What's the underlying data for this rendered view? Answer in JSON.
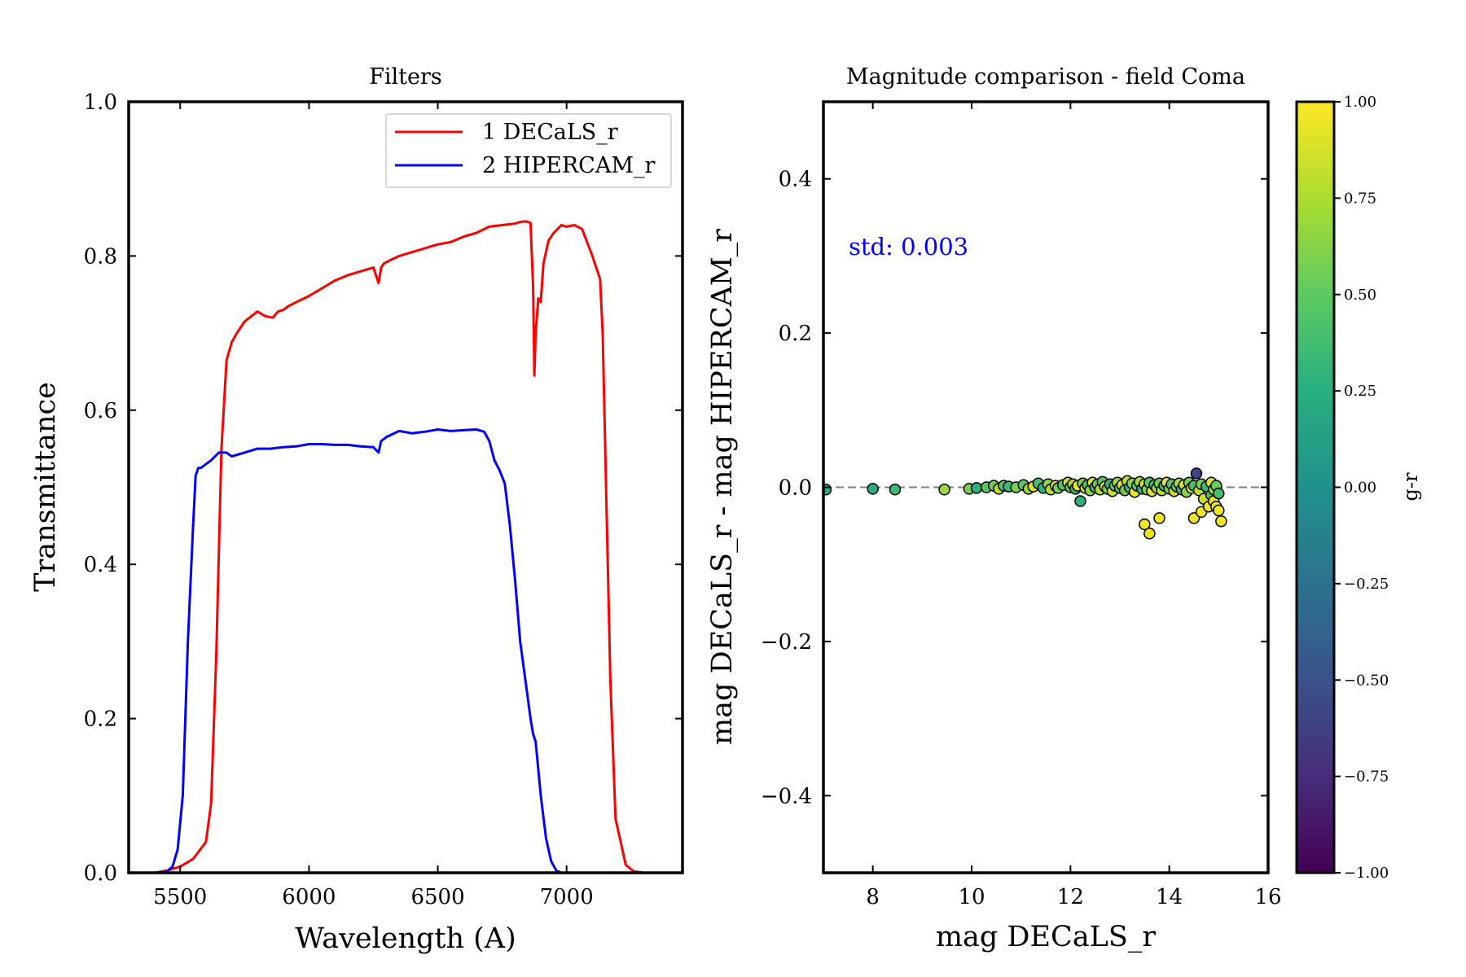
{
  "chart_data": [
    {
      "type": "line",
      "title": "Filters",
      "xlabel": "Wavelength (A)",
      "ylabel": "Transmittance",
      "xlim": [
        5300,
        7450
      ],
      "ylim": [
        0.0,
        1.0
      ],
      "xticks": [
        5500,
        6000,
        6500,
        7000
      ],
      "yticks": [
        0.0,
        0.2,
        0.4,
        0.6,
        0.8,
        1.0
      ],
      "xtick_labels": [
        "5500",
        "6000",
        "6500",
        "7000"
      ],
      "ytick_labels": [
        "0.0",
        "0.2",
        "0.4",
        "0.6",
        "0.8",
        "1.0"
      ],
      "legend": {
        "position": "upper right",
        "entries": [
          "1 DECaLS_r",
          "2 HIPERCAM_r"
        ]
      },
      "series": [
        {
          "name": "1 DECaLS_r",
          "color": "#ff0000",
          "x": [
            5400,
            5450,
            5500,
            5550,
            5600,
            5620,
            5640,
            5660,
            5680,
            5700,
            5720,
            5750,
            5800,
            5830,
            5860,
            5880,
            5900,
            5920,
            5950,
            6000,
            6050,
            6100,
            6150,
            6200,
            6250,
            6270,
            6280,
            6290,
            6300,
            6350,
            6400,
            6450,
            6500,
            6550,
            6600,
            6650,
            6700,
            6750,
            6800,
            6820,
            6840,
            6860,
            6870,
            6875,
            6880,
            6890,
            6900,
            6910,
            6930,
            6950,
            6980,
            7000,
            7030,
            7060,
            7100,
            7130,
            7140,
            7150,
            7170,
            7190,
            7210,
            7230,
            7260,
            7300
          ],
          "y": [
            0.0,
            0.003,
            0.008,
            0.018,
            0.04,
            0.09,
            0.28,
            0.55,
            0.665,
            0.688,
            0.7,
            0.715,
            0.728,
            0.722,
            0.72,
            0.728,
            0.73,
            0.735,
            0.74,
            0.748,
            0.758,
            0.768,
            0.775,
            0.78,
            0.785,
            0.765,
            0.785,
            0.79,
            0.792,
            0.8,
            0.805,
            0.81,
            0.815,
            0.818,
            0.825,
            0.83,
            0.838,
            0.84,
            0.842,
            0.844,
            0.845,
            0.843,
            0.76,
            0.645,
            0.7,
            0.745,
            0.74,
            0.79,
            0.82,
            0.83,
            0.84,
            0.838,
            0.84,
            0.835,
            0.8,
            0.77,
            0.7,
            0.55,
            0.25,
            0.07,
            0.04,
            0.01,
            0.002,
            0.0
          ]
        },
        {
          "name": "2 HIPERCAM_r",
          "color": "#0000ff",
          "x": [
            5420,
            5450,
            5470,
            5490,
            5510,
            5530,
            5550,
            5560,
            5570,
            5580,
            5600,
            5620,
            5650,
            5680,
            5700,
            5750,
            5800,
            5850,
            5900,
            5950,
            6000,
            6050,
            6100,
            6150,
            6200,
            6250,
            6270,
            6280,
            6300,
            6350,
            6400,
            6450,
            6500,
            6550,
            6600,
            6650,
            6680,
            6700,
            6720,
            6740,
            6760,
            6780,
            6800,
            6820,
            6840,
            6860,
            6870,
            6880,
            6900,
            6920,
            6940,
            6960,
            6980
          ],
          "y": [
            0.0,
            0.002,
            0.008,
            0.03,
            0.1,
            0.3,
            0.45,
            0.515,
            0.525,
            0.525,
            0.53,
            0.535,
            0.545,
            0.545,
            0.54,
            0.545,
            0.55,
            0.55,
            0.552,
            0.553,
            0.556,
            0.556,
            0.555,
            0.555,
            0.553,
            0.552,
            0.545,
            0.56,
            0.565,
            0.573,
            0.57,
            0.572,
            0.575,
            0.573,
            0.574,
            0.575,
            0.572,
            0.56,
            0.535,
            0.522,
            0.505,
            0.45,
            0.38,
            0.3,
            0.25,
            0.2,
            0.18,
            0.17,
            0.1,
            0.045,
            0.015,
            0.003,
            0.0
          ]
        }
      ]
    },
    {
      "type": "scatter",
      "title": "Magnitude comparison - field Coma",
      "xlabel": "mag DECaLS_r",
      "ylabel": "mag DECaLS_r - mag HIPERCAM_r",
      "xlim": [
        7,
        16
      ],
      "ylim": [
        -0.5,
        0.5
      ],
      "xticks": [
        8,
        10,
        12,
        14,
        16
      ],
      "yticks": [
        -0.4,
        -0.2,
        0.0,
        0.2,
        0.4
      ],
      "xtick_labels": [
        "8",
        "10",
        "12",
        "14",
        "16"
      ],
      "ytick_labels": [
        "−0.4",
        "−0.2",
        "0.0",
        "0.2",
        "0.4"
      ],
      "reference_line": {
        "y": 0.0,
        "style": "dashed",
        "color": "#808080"
      },
      "annotation": "std: 0.003",
      "colorbar": {
        "label": "g-r",
        "range": [
          -1.0,
          1.0
        ],
        "colormap": "viridis",
        "ticks": [
          -1.0,
          -0.75,
          -0.5,
          -0.25,
          0.0,
          0.25,
          0.5,
          0.75,
          1.0
        ],
        "tick_labels": [
          "−1.00",
          "−0.75",
          "−0.50",
          "−0.25",
          "0.00",
          "0.25",
          "0.50",
          "0.75",
          "1.00"
        ]
      },
      "points": [
        {
          "x": 7.05,
          "y": -0.003,
          "c": 0.25
        },
        {
          "x": 8.0,
          "y": -0.002,
          "c": 0.25
        },
        {
          "x": 8.45,
          "y": -0.003,
          "c": 0.35
        },
        {
          "x": 9.45,
          "y": -0.003,
          "c": 0.7
        },
        {
          "x": 9.95,
          "y": -0.002,
          "c": 0.6
        },
        {
          "x": 10.1,
          "y": -0.001,
          "c": 0.3
        },
        {
          "x": 10.3,
          "y": 0.0,
          "c": 0.5
        },
        {
          "x": 10.45,
          "y": 0.002,
          "c": 0.55
        },
        {
          "x": 10.55,
          "y": -0.002,
          "c": 0.8
        },
        {
          "x": 10.65,
          "y": 0.002,
          "c": 0.45
        },
        {
          "x": 10.75,
          "y": 0.001,
          "c": 0.35
        },
        {
          "x": 10.9,
          "y": 0.0,
          "c": 0.6
        },
        {
          "x": 11.05,
          "y": 0.003,
          "c": 0.5
        },
        {
          "x": 11.15,
          "y": -0.002,
          "c": 0.7
        },
        {
          "x": 11.25,
          "y": 0.001,
          "c": 0.9
        },
        {
          "x": 11.35,
          "y": 0.005,
          "c": 0.4
        },
        {
          "x": 11.45,
          "y": -0.001,
          "c": 0.3
        },
        {
          "x": 11.55,
          "y": 0.004,
          "c": 0.65
        },
        {
          "x": 11.6,
          "y": -0.003,
          "c": 0.8
        },
        {
          "x": 11.7,
          "y": 0.002,
          "c": 0.95
        },
        {
          "x": 11.75,
          "y": -0.001,
          "c": 0.55
        },
        {
          "x": 11.85,
          "y": 0.003,
          "c": 0.45
        },
        {
          "x": 11.95,
          "y": 0.006,
          "c": 0.85
        },
        {
          "x": 12.0,
          "y": 0.0,
          "c": 0.5
        },
        {
          "x": 12.05,
          "y": 0.004,
          "c": 0.75
        },
        {
          "x": 12.1,
          "y": -0.002,
          "c": 0.3
        },
        {
          "x": 12.15,
          "y": 0.002,
          "c": 0.95
        },
        {
          "x": 12.2,
          "y": -0.018,
          "c": 0.3
        },
        {
          "x": 12.25,
          "y": 0.005,
          "c": 0.6
        },
        {
          "x": 12.3,
          "y": -0.001,
          "c": 0.8
        },
        {
          "x": 12.35,
          "y": 0.003,
          "c": 0.4
        },
        {
          "x": 12.4,
          "y": -0.004,
          "c": 0.65
        },
        {
          "x": 12.45,
          "y": 0.006,
          "c": 0.9
        },
        {
          "x": 12.5,
          "y": 0.0,
          "c": 0.35
        },
        {
          "x": 12.55,
          "y": 0.004,
          "c": 0.55
        },
        {
          "x": 12.6,
          "y": -0.003,
          "c": 0.75
        },
        {
          "x": 12.65,
          "y": 0.007,
          "c": 0.45
        },
        {
          "x": 12.7,
          "y": 0.001,
          "c": 0.95
        },
        {
          "x": 12.75,
          "y": -0.002,
          "c": 0.6
        },
        {
          "x": 12.8,
          "y": 0.004,
          "c": 0.3
        },
        {
          "x": 12.85,
          "y": -0.005,
          "c": 0.85
        },
        {
          "x": 12.9,
          "y": 0.002,
          "c": 0.5
        },
        {
          "x": 12.95,
          "y": 0.006,
          "c": 0.7
        },
        {
          "x": 13.0,
          "y": -0.001,
          "c": 0.4
        },
        {
          "x": 13.05,
          "y": 0.003,
          "c": 0.9
        },
        {
          "x": 13.1,
          "y": -0.004,
          "c": 0.55
        },
        {
          "x": 13.15,
          "y": 0.008,
          "c": 0.8
        },
        {
          "x": 13.2,
          "y": 0.0,
          "c": 0.35
        },
        {
          "x": 13.25,
          "y": 0.005,
          "c": 0.65
        },
        {
          "x": 13.3,
          "y": -0.006,
          "c": 0.95
        },
        {
          "x": 13.35,
          "y": 0.002,
          "c": 0.45
        },
        {
          "x": 13.4,
          "y": 0.007,
          "c": 0.75
        },
        {
          "x": 13.45,
          "y": -0.002,
          "c": 0.3
        },
        {
          "x": 13.5,
          "y": 0.004,
          "c": 0.85
        },
        {
          "x": 13.5,
          "y": -0.048,
          "c": 0.95
        },
        {
          "x": 13.55,
          "y": -0.003,
          "c": 0.6
        },
        {
          "x": 13.6,
          "y": 0.006,
          "c": 0.5
        },
        {
          "x": 13.6,
          "y": -0.06,
          "c": 0.95
        },
        {
          "x": 13.65,
          "y": -0.005,
          "c": 0.9
        },
        {
          "x": 13.7,
          "y": 0.003,
          "c": 0.4
        },
        {
          "x": 13.75,
          "y": -0.001,
          "c": 0.7
        },
        {
          "x": 13.8,
          "y": 0.005,
          "c": 0.55
        },
        {
          "x": 13.8,
          "y": -0.04,
          "c": 0.95
        },
        {
          "x": 13.85,
          "y": -0.004,
          "c": 0.8
        },
        {
          "x": 13.9,
          "y": 0.002,
          "c": 0.35
        },
        {
          "x": 13.95,
          "y": 0.006,
          "c": 0.95
        },
        {
          "x": 14.0,
          "y": -0.002,
          "c": 0.6
        },
        {
          "x": 14.05,
          "y": 0.004,
          "c": 0.45
        },
        {
          "x": 14.1,
          "y": -0.005,
          "c": 0.85
        },
        {
          "x": 14.15,
          "y": 0.001,
          "c": 0.5
        },
        {
          "x": 14.2,
          "y": 0.005,
          "c": 0.75
        },
        {
          "x": 14.25,
          "y": -0.003,
          "c": 0.3
        },
        {
          "x": 14.3,
          "y": 0.003,
          "c": 0.9
        },
        {
          "x": 14.35,
          "y": -0.006,
          "c": 0.65
        },
        {
          "x": 14.4,
          "y": 0.006,
          "c": 0.55
        },
        {
          "x": 14.45,
          "y": -0.001,
          "c": 0.95
        },
        {
          "x": 14.5,
          "y": 0.002,
          "c": 0.4
        },
        {
          "x": 14.5,
          "y": -0.04,
          "c": 0.95
        },
        {
          "x": 14.55,
          "y": 0.018,
          "c": -0.6
        },
        {
          "x": 14.6,
          "y": -0.004,
          "c": 0.8
        },
        {
          "x": 14.65,
          "y": 0.004,
          "c": 0.6
        },
        {
          "x": 14.65,
          "y": -0.032,
          "c": 0.95
        },
        {
          "x": 14.7,
          "y": -0.015,
          "c": 0.85
        },
        {
          "x": 14.75,
          "y": 0.001,
          "c": 0.35
        },
        {
          "x": 14.8,
          "y": -0.025,
          "c": 0.95
        },
        {
          "x": 14.85,
          "y": 0.006,
          "c": 0.9
        },
        {
          "x": 14.85,
          "y": -0.01,
          "c": 0.45
        },
        {
          "x": 14.9,
          "y": -0.003,
          "c": 0.7
        },
        {
          "x": 14.9,
          "y": -0.018,
          "c": 0.95
        },
        {
          "x": 14.95,
          "y": 0.002,
          "c": 0.55
        },
        {
          "x": 14.95,
          "y": -0.025,
          "c": 0.95
        },
        {
          "x": 15.0,
          "y": -0.008,
          "c": 0.4
        },
        {
          "x": 15.0,
          "y": -0.03,
          "c": 0.95
        },
        {
          "x": 15.05,
          "y": -0.044,
          "c": 0.95
        }
      ]
    }
  ]
}
